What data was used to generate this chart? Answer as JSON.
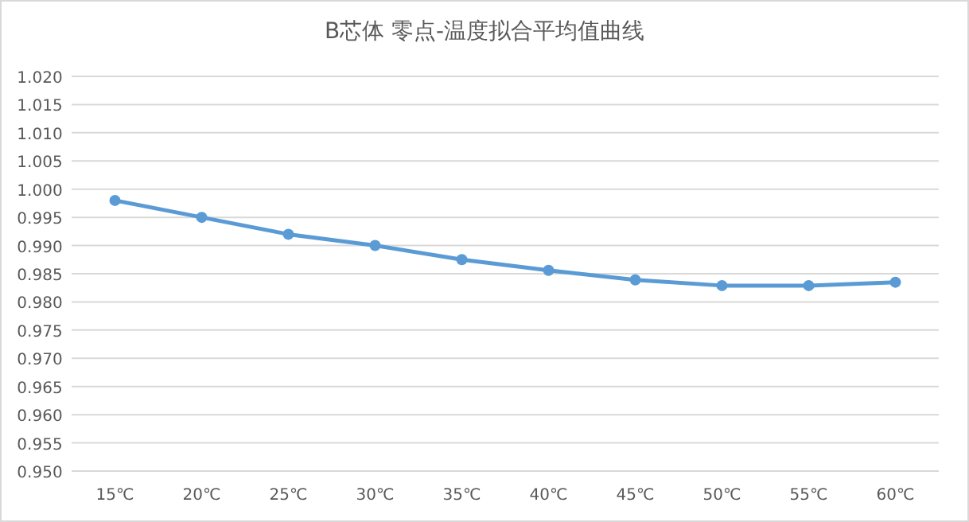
{
  "chart_data": {
    "type": "line",
    "title": "B芯体 零点-温度拟合平均值曲线",
    "categories": [
      "15℃",
      "20℃",
      "25℃",
      "30℃",
      "35℃",
      "40℃",
      "45℃",
      "50℃",
      "55℃",
      "60℃"
    ],
    "values": [
      0.998,
      0.995,
      0.992,
      0.99,
      0.9875,
      0.9856,
      0.9839,
      0.9829,
      0.9829,
      0.9835
    ],
    "color": "#5b9bd5",
    "ylim": [
      0.95,
      1.02
    ],
    "yticks": [
      {
        "value": 0.95,
        "label": "0.950"
      },
      {
        "value": 0.955,
        "label": "0.955"
      },
      {
        "value": 0.96,
        "label": "0.960"
      },
      {
        "value": 0.965,
        "label": "0.965"
      },
      {
        "value": 0.97,
        "label": "0.970"
      },
      {
        "value": 0.975,
        "label": "0.975"
      },
      {
        "value": 0.98,
        "label": "0.980"
      },
      {
        "value": 0.985,
        "label": "0.985"
      },
      {
        "value": 0.99,
        "label": "0.990"
      },
      {
        "value": 0.995,
        "label": "0.995"
      },
      {
        "value": 1.0,
        "label": "1.000"
      },
      {
        "value": 1.005,
        "label": "1.005"
      },
      {
        "value": 1.01,
        "label": "1.010"
      },
      {
        "value": 1.015,
        "label": "1.015"
      },
      {
        "value": 1.02,
        "label": "1.020"
      }
    ],
    "grid": "y",
    "marker": "circle",
    "line_style": "solid"
  }
}
